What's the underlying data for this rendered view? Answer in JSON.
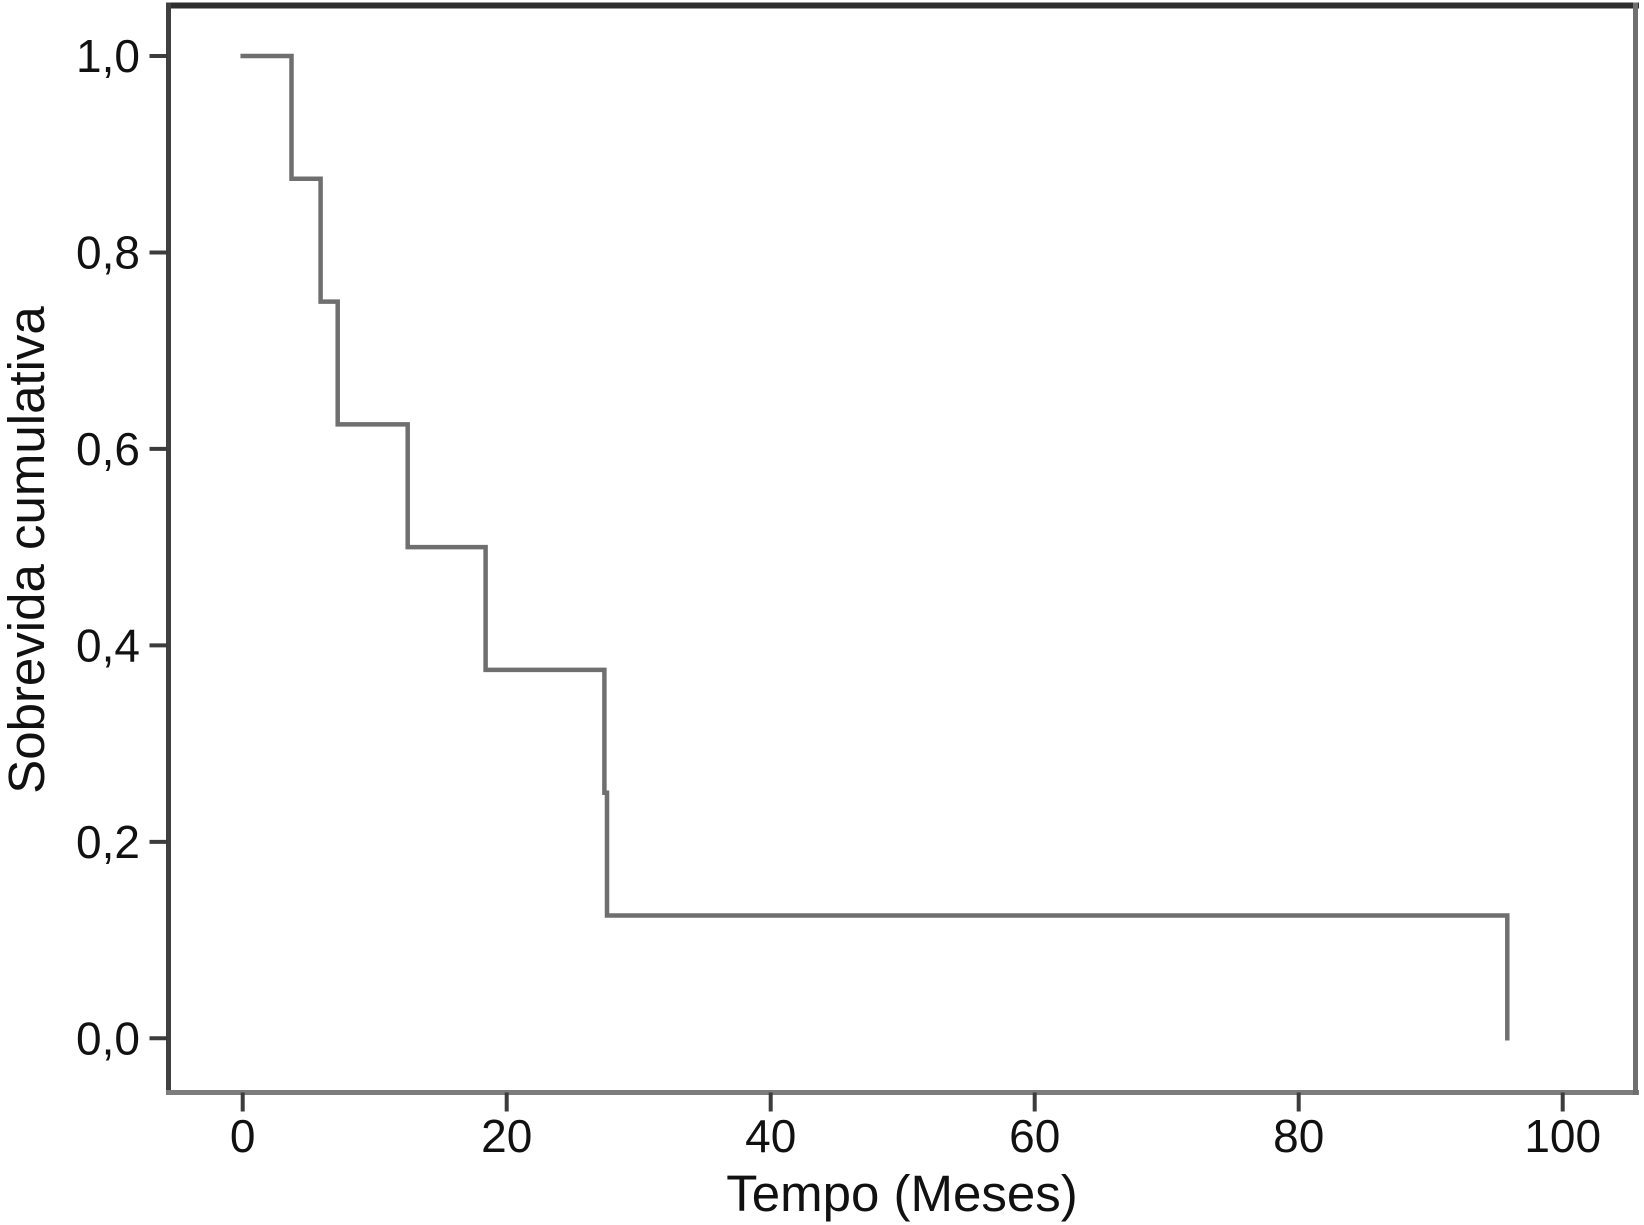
{
  "figure": {
    "background": "#ffffff"
  },
  "chart_data": {
    "type": "line",
    "subtype": "kaplan_meier_step_survival",
    "title": "",
    "xlabel": "Tempo (Meses)",
    "ylabel": "Sobrevida cumulativa",
    "x_ticks": [
      {
        "v": 0,
        "label": "0"
      },
      {
        "v": 20,
        "label": "20"
      },
      {
        "v": 40,
        "label": "40"
      },
      {
        "v": 60,
        "label": "60"
      },
      {
        "v": 80,
        "label": "80"
      },
      {
        "v": 100,
        "label": "100"
      }
    ],
    "y_ticks": [
      {
        "v": 0.0,
        "label": "0,0"
      },
      {
        "v": 0.2,
        "label": "0,2"
      },
      {
        "v": 0.4,
        "label": "0,4"
      },
      {
        "v": 0.6,
        "label": "0,6"
      },
      {
        "v": 0.8,
        "label": "0,8"
      },
      {
        "v": 1.0,
        "label": "1,0"
      }
    ],
    "xlim": [
      -5.6,
      105.6
    ],
    "ylim": [
      -0.056,
      1.055
    ],
    "grid": false,
    "legend": false,
    "series": [
      {
        "name": "Sobrevida cumulativa",
        "start": {
          "t": 0,
          "s": 1.0
        },
        "steps": [
          {
            "t": 3.7,
            "s": 0.875
          },
          {
            "t": 5.9,
            "s": 0.75
          },
          {
            "t": 7.2,
            "s": 0.625
          },
          {
            "t": 12.5,
            "s": 0.5
          },
          {
            "t": 18.4,
            "s": 0.375
          },
          {
            "t": 27.4,
            "s": 0.25
          },
          {
            "t": 27.6,
            "s": 0.125
          },
          {
            "t": 95.8,
            "s": 0.0
          }
        ],
        "color": "#6f6f6f"
      }
    ],
    "colors": {
      "frame_top": "#2e2e2e",
      "frame_left": "#404040",
      "frame_bottom": "#7d7d7d",
      "frame_right": "#6f6f6f",
      "tick": "#3c3c3c",
      "text": "#111111"
    }
  }
}
